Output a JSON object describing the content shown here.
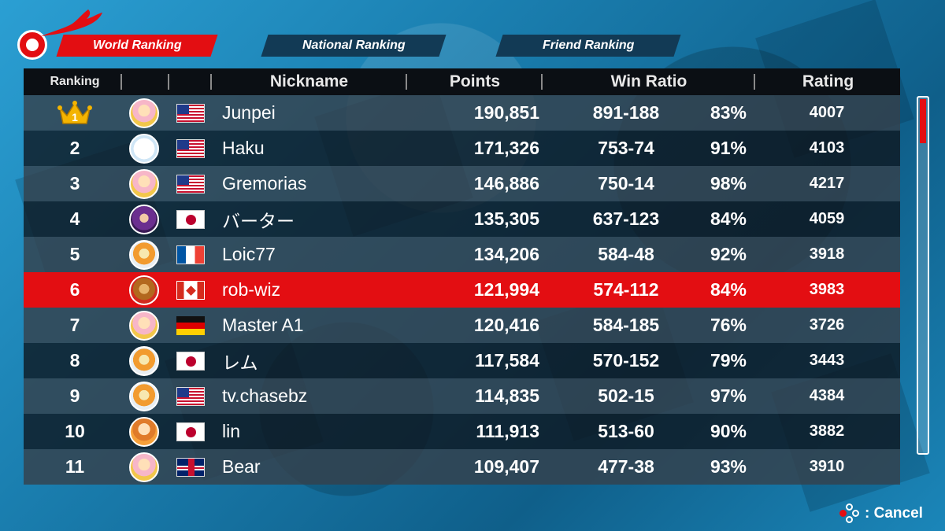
{
  "tabs": [
    {
      "label": "World Ranking",
      "active": true
    },
    {
      "label": "National Ranking",
      "active": false
    },
    {
      "label": "Friend Ranking",
      "active": false
    }
  ],
  "columns": {
    "rank": "Ranking",
    "nickname": "Nickname",
    "points": "Points",
    "win_ratio": "Win Ratio",
    "rating": "Rating"
  },
  "rows": [
    {
      "rank": "1",
      "avatar": "peach",
      "flag": "us",
      "nickname": "Junpei",
      "points": "190,851",
      "record": "891-188",
      "percent": "83%",
      "rating": "4007",
      "crown": true
    },
    {
      "rank": "2",
      "avatar": "boo",
      "flag": "us",
      "nickname": "Haku",
      "points": "171,326",
      "record": "753-74",
      "percent": "91%",
      "rating": "4103"
    },
    {
      "rank": "3",
      "avatar": "peach",
      "flag": "us",
      "nickname": "Gremorias",
      "points": "146,886",
      "record": "750-14",
      "percent": "98%",
      "rating": "4217"
    },
    {
      "rank": "4",
      "avatar": "waluigi",
      "flag": "jp",
      "nickname": "バーター",
      "points": "135,305",
      "record": "637-123",
      "percent": "84%",
      "rating": "4059"
    },
    {
      "rank": "5",
      "avatar": "bowserjr",
      "flag": "fr",
      "nickname": "Loic77",
      "points": "134,206",
      "record": "584-48",
      "percent": "92%",
      "rating": "3918"
    },
    {
      "rank": "6",
      "avatar": "bowser",
      "flag": "ca",
      "nickname": "rob-wiz",
      "points": "121,994",
      "record": "574-112",
      "percent": "84%",
      "rating": "3983",
      "highlight": true
    },
    {
      "rank": "7",
      "avatar": "peach",
      "flag": "de",
      "nickname": "Master A1",
      "points": "120,416",
      "record": "584-185",
      "percent": "76%",
      "rating": "3726"
    },
    {
      "rank": "8",
      "avatar": "bowserjr",
      "flag": "jp",
      "nickname": "レム",
      "points": "117,584",
      "record": "570-152",
      "percent": "79%",
      "rating": "3443"
    },
    {
      "rank": "9",
      "avatar": "bowserjr",
      "flag": "us",
      "nickname": "tv.chasebz",
      "points": "114,835",
      "record": "502-15",
      "percent": "97%",
      "rating": "4384"
    },
    {
      "rank": "10",
      "avatar": "daisy",
      "flag": "jp",
      "nickname": "lin",
      "points": "111,913",
      "record": "513-60",
      "percent": "90%",
      "rating": "3882"
    },
    {
      "rank": "11",
      "avatar": "peach",
      "flag": "gb",
      "nickname": "Bear",
      "points": "109,407",
      "record": "477-38",
      "percent": "93%",
      "rating": "3910"
    }
  ],
  "footer": {
    "cancel_label": ": Cancel",
    "button_icon": "buttons-icon"
  },
  "colors": {
    "accent": "#e30e12",
    "header_bg": "#0b0f14",
    "highlight_row": "#e30e12"
  }
}
